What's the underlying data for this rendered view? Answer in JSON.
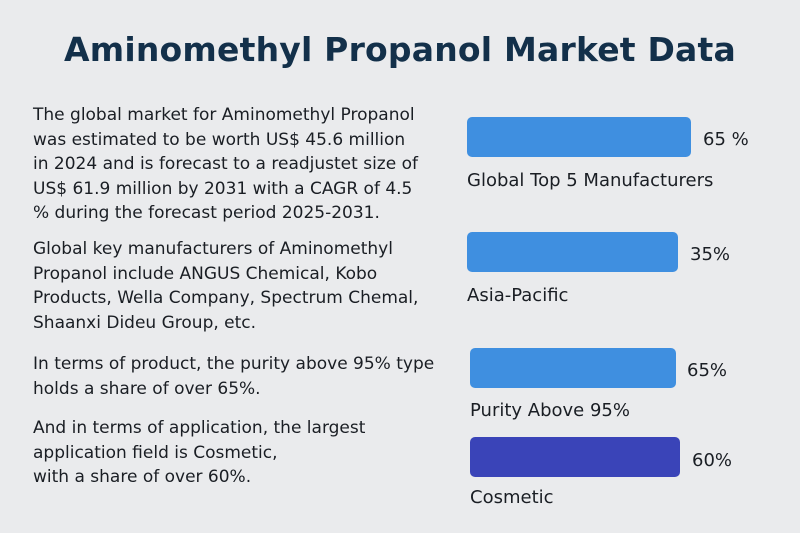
{
  "title": "Aminomethyl Propanol Market Data",
  "paragraphs": [
    "The global market for Aminomethyl Propanol\nwas estimated to be worth US$ 45.6 million\nin 2024 and is forecast to a readjustet size of\nUS$ 61.9 million by 2031 with a CAGR of 4.5\n% during the forecast period 2025-2031.",
    "Global key manufacturers of Aminomethyl\nPropanol include ANGUS Chemical, Kobo\nProducts, Wella Company, Spectrum Chemal,\nShaanxi Dideu Group, etc.",
    "In terms of product, the purity above 95% type\nholds a share of over 65%.",
    "And in terms of application, the largest\napplication field is Cosmetic,\nwith a share of over 60%."
  ],
  "colors": {
    "bar_blue": "#3f8fe0",
    "bar_purple": "#3a44b8"
  },
  "chart_data": {
    "type": "bar",
    "orientation": "horizontal",
    "categories": [
      "Global Top 5 Manufacturers",
      "Asia-Pacific",
      "Purity Above 95%",
      "Cosmetic"
    ],
    "values": [
      65,
      35,
      65,
      60
    ],
    "value_labels": [
      "65 %",
      "35%",
      "65%",
      "60%"
    ],
    "bar_colors": [
      "#3f8fe0",
      "#3f8fe0",
      "#3f8fe0",
      "#3a44b8"
    ],
    "unit": "%"
  }
}
